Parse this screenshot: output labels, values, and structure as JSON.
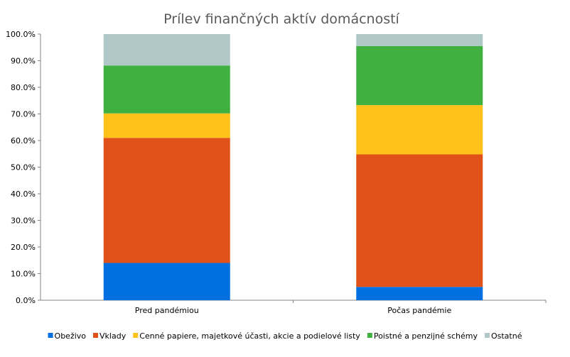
{
  "chart_data": {
    "type": "bar",
    "stacked": true,
    "title": "Prílev finančných aktív domácností",
    "categories": [
      "Pred pandémiou",
      "Počas pandémie"
    ],
    "series": [
      {
        "name": "Obeživo",
        "color": "#0070E0",
        "values": [
          14.0,
          5.0
        ]
      },
      {
        "name": "Vklady",
        "color": "#E0521A",
        "values": [
          47.0,
          49.8
        ]
      },
      {
        "name": "Cenné papiere, majetkové účasti, akcie a podielové listy",
        "color": "#FFC21A",
        "values": [
          9.2,
          18.5
        ]
      },
      {
        "name": "Poistné a penzijné schémy",
        "color": "#40B040",
        "values": [
          18.0,
          22.2
        ]
      },
      {
        "name": "Ostatné",
        "color": "#B0C8C8",
        "values": [
          11.8,
          4.5
        ]
      }
    ],
    "yticks": [
      "0.0%",
      "10.0%",
      "20.0%",
      "30.0%",
      "40.0%",
      "50.0%",
      "60.0%",
      "70.0%",
      "80.0%",
      "90.0%",
      "100.0%"
    ],
    "ylim": [
      0,
      100
    ],
    "grid": false,
    "legend_position": "bottom"
  }
}
